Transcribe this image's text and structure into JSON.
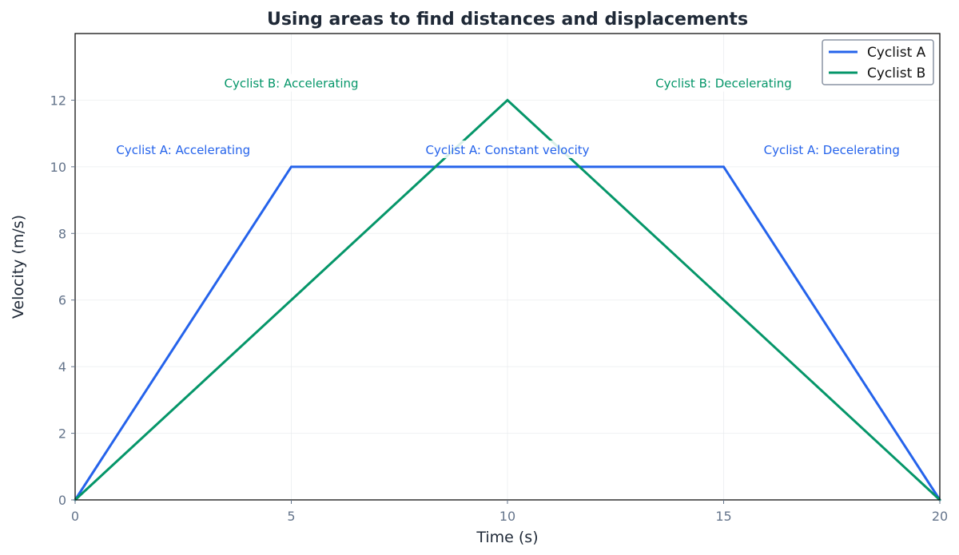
{
  "chart_data": {
    "type": "line",
    "title": "Using areas to find distances and displacements",
    "xlabel": "Time (s)",
    "ylabel": "Velocity (m/s)",
    "xlim": [
      0,
      20
    ],
    "ylim": [
      0,
      14
    ],
    "xticks": [
      0,
      5,
      10,
      15,
      20
    ],
    "yticks": [
      0,
      2,
      4,
      6,
      8,
      10,
      12
    ],
    "grid": true,
    "legend_position": "top-right",
    "series": [
      {
        "name": "Cyclist A",
        "color": "#2563eb",
        "points": [
          {
            "x": 0,
            "y": 0
          },
          {
            "x": 5,
            "y": 10
          },
          {
            "x": 15,
            "y": 10
          },
          {
            "x": 20,
            "y": 0
          }
        ]
      },
      {
        "name": "Cyclist B",
        "color": "#059669",
        "points": [
          {
            "x": 0,
            "y": 0
          },
          {
            "x": 10,
            "y": 12
          },
          {
            "x": 20,
            "y": 0
          }
        ]
      }
    ],
    "annotations": [
      {
        "text": "Cyclist A: Accelerating",
        "x": 2.5,
        "y": 10.5,
        "color": "#2563eb"
      },
      {
        "text": "Cyclist A: Constant velocity",
        "x": 10,
        "y": 10.5,
        "color": "#2563eb"
      },
      {
        "text": "Cyclist A: Decelerating",
        "x": 17.5,
        "y": 10.5,
        "color": "#2563eb"
      },
      {
        "text": "Cyclist B: Accelerating",
        "x": 5,
        "y": 12.5,
        "color": "#059669"
      },
      {
        "text": "Cyclist B: Decelerating",
        "x": 15,
        "y": 12.5,
        "color": "#059669"
      }
    ]
  }
}
